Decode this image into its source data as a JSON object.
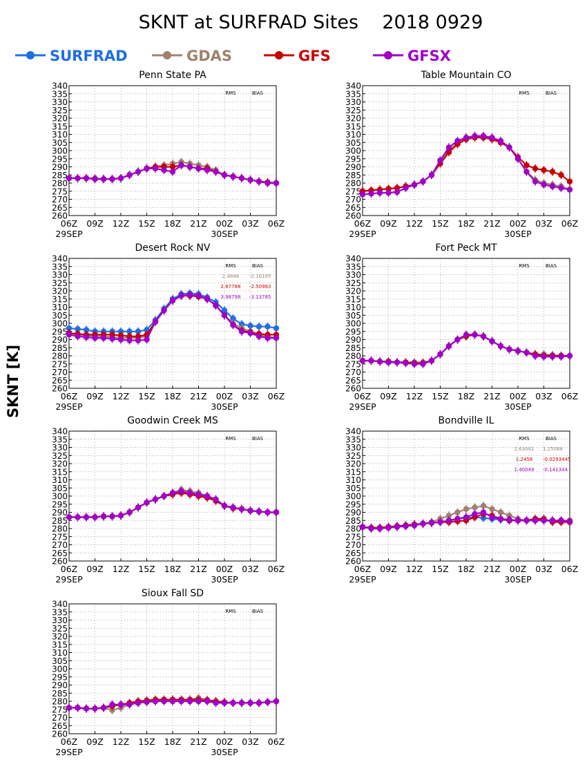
{
  "title": "SKNT at SURFRAD Sites    2018 0929",
  "ylabel": "SKNT [K]",
  "legend": [
    {
      "name": "SURFRAD",
      "color": "#1e6ee6"
    },
    {
      "name": "GDAS",
      "color": "#a08070"
    },
    {
      "name": "GFS",
      "color": "#c80000"
    },
    {
      "name": "GFSX",
      "color": "#a000c8"
    }
  ],
  "x_tick_labels": [
    "06Z",
    "09Z",
    "12Z",
    "15Z",
    "18Z",
    "21Z",
    "00Z",
    "03Z",
    "06Z"
  ],
  "date_labels": [
    "29SEP",
    "30SEP"
  ],
  "y_ticks": [
    260,
    265,
    270,
    275,
    280,
    285,
    290,
    295,
    300,
    305,
    310,
    315,
    320,
    325,
    330,
    335,
    340
  ],
  "stats_headers": [
    "RMS",
    "BIAS"
  ],
  "chart_data": [
    {
      "type": "line",
      "title": "Penn State PA",
      "x_hours": [
        0,
        1,
        2,
        3,
        4,
        5,
        6,
        7,
        8,
        9,
        10,
        11,
        12,
        13,
        14,
        15,
        16,
        17,
        18,
        19,
        20,
        21,
        22,
        23,
        24
      ],
      "ylim": [
        260,
        340
      ],
      "grid": true,
      "stats": [],
      "series": [
        {
          "name": "GDAS",
          "values": [
            283,
            283,
            283,
            283,
            282.5,
            282.5,
            283,
            285,
            287,
            289,
            290,
            291,
            292,
            293,
            292,
            291,
            290,
            288,
            285,
            284,
            283,
            282,
            281,
            280.5,
            280
          ]
        },
        {
          "name": "GFS",
          "values": [
            283,
            283,
            283,
            282.5,
            282.5,
            282.5,
            283,
            285,
            287,
            289,
            290,
            290,
            290,
            291,
            290,
            289,
            289,
            287,
            285,
            284,
            283,
            282,
            281,
            280.5,
            280
          ]
        },
        {
          "name": "GFSX",
          "values": [
            283,
            283,
            283,
            282.5,
            282.5,
            282.5,
            283,
            285,
            287,
            289,
            289,
            288,
            287,
            291,
            290,
            289,
            288,
            287,
            285,
            284,
            283,
            282,
            281,
            280,
            280
          ]
        }
      ]
    },
    {
      "type": "line",
      "title": "Table Mountain CO",
      "x_hours": [
        0,
        1,
        2,
        3,
        4,
        5,
        6,
        7,
        8,
        9,
        10,
        11,
        12,
        13,
        14,
        15,
        16,
        17,
        18,
        19,
        20,
        21,
        22,
        23,
        24
      ],
      "ylim": [
        260,
        340
      ],
      "grid": true,
      "stats": [],
      "series": [
        {
          "name": "GDAS",
          "values": [
            275,
            275.5,
            276,
            276.5,
            277,
            278,
            279,
            281,
            285,
            293,
            300,
            305,
            308,
            309,
            309,
            308,
            306,
            302,
            295,
            287,
            282,
            280,
            279,
            278,
            276
          ]
        },
        {
          "name": "GFS",
          "values": [
            275,
            275.5,
            276,
            276.5,
            277,
            278,
            279,
            281,
            285,
            292,
            299,
            304,
            307,
            308,
            308,
            307,
            305,
            302,
            296,
            291,
            289,
            288,
            287,
            285,
            281
          ]
        },
        {
          "name": "GFSX",
          "values": [
            273,
            273.5,
            274,
            274,
            274.5,
            277,
            279,
            281,
            285,
            294,
            302,
            306,
            308,
            309,
            309,
            308,
            306,
            302,
            295,
            287,
            281,
            279,
            278,
            277,
            276
          ]
        }
      ]
    },
    {
      "type": "line",
      "title": "Desert Rock NV",
      "x_hours": [
        0,
        1,
        2,
        3,
        4,
        5,
        6,
        7,
        8,
        9,
        10,
        11,
        12,
        13,
        14,
        15,
        16,
        17,
        18,
        19,
        20,
        21,
        22,
        23,
        24
      ],
      "ylim": [
        260,
        340
      ],
      "grid": true,
      "stats": [
        {
          "series": "GDAS",
          "rms": "2.4848",
          "bias": "-2.16185"
        },
        {
          "series": "GFS",
          "rms": "2.87788",
          "bias": "-2.50983"
        },
        {
          "series": "GFSX",
          "rms": "3.98798",
          "bias": "-3.13785"
        }
      ],
      "series": [
        {
          "name": "SURFRAD",
          "values": [
            297,
            296.5,
            296,
            295,
            295,
            295,
            295,
            295,
            295,
            296,
            302,
            309,
            315,
            318,
            318.5,
            318,
            316,
            313,
            308,
            303,
            299.5,
            298.5,
            298,
            298,
            297
          ]
        },
        {
          "name": "GDAS",
          "values": [
            294,
            293,
            292.5,
            292,
            292,
            291.5,
            291,
            291,
            291,
            292,
            301,
            308,
            314,
            317,
            317.5,
            317,
            315,
            311,
            305,
            300,
            297,
            295,
            293,
            292,
            291
          ]
        },
        {
          "name": "GFS",
          "values": [
            294,
            293.5,
            293,
            293,
            293,
            293,
            292.5,
            292,
            292,
            293,
            301,
            308,
            314,
            317,
            317,
            316.5,
            315,
            311,
            305,
            299,
            295.5,
            294.5,
            293.5,
            293,
            293
          ]
        },
        {
          "name": "GFSX",
          "values": [
            293,
            292,
            291.5,
            291,
            291,
            290.5,
            290,
            289.5,
            289.5,
            290,
            301,
            308,
            314,
            317,
            317.5,
            317,
            315,
            311,
            305,
            299,
            295,
            294,
            292,
            291,
            291
          ]
        }
      ]
    },
    {
      "type": "line",
      "title": "Fort Peck MT",
      "x_hours": [
        0,
        1,
        2,
        3,
        4,
        5,
        6,
        7,
        8,
        9,
        10,
        11,
        12,
        13,
        14,
        15,
        16,
        17,
        18,
        19,
        20,
        21,
        22,
        23,
        24
      ],
      "ylim": [
        260,
        340
      ],
      "grid": true,
      "stats": [],
      "series": [
        {
          "name": "GDAS",
          "values": [
            277,
            277,
            276.5,
            276.5,
            276,
            276,
            276,
            276,
            277,
            281,
            286,
            290,
            292,
            293,
            292,
            289,
            286,
            284,
            283,
            282,
            281,
            281,
            280.5,
            280,
            280
          ]
        },
        {
          "name": "GFS",
          "values": [
            277,
            277,
            276.5,
            276.5,
            276,
            276,
            275.5,
            275.5,
            277,
            281,
            286,
            290,
            292,
            293,
            292,
            289,
            286,
            284,
            283,
            282,
            281,
            280,
            280,
            280,
            280
          ]
        },
        {
          "name": "GFSX",
          "values": [
            277,
            277,
            276.5,
            276,
            276,
            275.5,
            275,
            275,
            277,
            281,
            286,
            290,
            293,
            293,
            292,
            289,
            286,
            284,
            283,
            282,
            280,
            279.5,
            279.5,
            279.5,
            280
          ]
        }
      ]
    },
    {
      "type": "line",
      "title": "Goodwin Creek MS",
      "x_hours": [
        0,
        1,
        2,
        3,
        4,
        5,
        6,
        7,
        8,
        9,
        10,
        11,
        12,
        13,
        14,
        15,
        16,
        17,
        18,
        19,
        20,
        21,
        22,
        23,
        24
      ],
      "ylim": [
        260,
        340
      ],
      "grid": true,
      "stats": [],
      "series": [
        {
          "name": "GDAS",
          "values": [
            287,
            287,
            287,
            287,
            287.5,
            287.5,
            288,
            290,
            293,
            296,
            298,
            300,
            302,
            304,
            303,
            302,
            300,
            298,
            294,
            293,
            292,
            291,
            290.5,
            290,
            290
          ]
        },
        {
          "name": "GFS",
          "values": [
            287,
            287,
            287,
            287,
            287.5,
            287.5,
            288,
            290,
            293,
            296,
            298,
            300,
            301,
            302,
            301,
            300,
            299,
            297,
            294,
            292.5,
            292,
            291,
            290.5,
            290,
            290
          ]
        },
        {
          "name": "GFSX",
          "values": [
            287,
            287,
            287,
            287,
            287.5,
            287.5,
            288,
            290,
            293,
            296,
            298,
            300,
            302,
            303,
            302,
            301,
            300,
            298,
            294,
            293,
            292,
            291,
            290.5,
            290,
            290
          ]
        }
      ]
    },
    {
      "type": "line",
      "title": "Bondville IL",
      "x_hours": [
        0,
        1,
        2,
        3,
        4,
        5,
        6,
        7,
        8,
        9,
        10,
        11,
        12,
        13,
        14,
        15,
        16,
        17,
        18,
        19,
        20,
        21,
        22,
        23,
        24
      ],
      "ylim": [
        260,
        340
      ],
      "grid": true,
      "stats": [
        {
          "series": "GDAS",
          "rms": "2.63041",
          "bias": "1.25088"
        },
        {
          "series": "GFS",
          "rms": "1.2458",
          "bias": "-0.0293445"
        },
        {
          "series": "GFSX",
          "rms": "1.40049",
          "bias": "-0.141344"
        }
      ],
      "series": [
        {
          "name": "SURFRAD",
          "values": [
            281,
            280.5,
            280.5,
            281,
            281.5,
            282,
            282.5,
            283,
            283.5,
            284,
            285,
            286,
            286.5,
            287,
            286.5,
            286,
            285.5,
            285,
            285,
            285,
            285,
            285,
            284.5,
            284.5,
            284
          ]
        },
        {
          "name": "GDAS",
          "values": [
            281,
            280,
            280,
            280.5,
            281,
            281.5,
            282,
            283,
            284,
            286,
            288,
            290,
            292,
            293,
            294,
            292,
            290,
            288,
            286,
            285,
            285,
            285,
            285,
            285,
            285
          ]
        },
        {
          "name": "GFS",
          "values": [
            281,
            280.5,
            280.5,
            281,
            281.5,
            282,
            282.5,
            283,
            283.5,
            284,
            284,
            284.5,
            285,
            287,
            289,
            288,
            286,
            285,
            285,
            285,
            286,
            286,
            284,
            284,
            284
          ]
        },
        {
          "name": "GFSX",
          "values": [
            281,
            280,
            280,
            280.5,
            281,
            281.5,
            282,
            283,
            283.5,
            284,
            285,
            286,
            287,
            289,
            290,
            287,
            286,
            285.5,
            285,
            285,
            285,
            285,
            285,
            285,
            284.5
          ]
        }
      ]
    },
    {
      "type": "line",
      "title": "Sioux Fall SD",
      "x_hours": [
        0,
        1,
        2,
        3,
        4,
        5,
        6,
        7,
        8,
        9,
        10,
        11,
        12,
        13,
        14,
        15,
        16,
        17,
        18,
        19,
        20,
        21,
        22,
        23,
        24
      ],
      "ylim": [
        260,
        340
      ],
      "grid": true,
      "stats": [],
      "series": [
        {
          "name": "GDAS",
          "values": [
            276,
            276,
            275.5,
            275.5,
            276,
            274.5,
            276,
            278,
            279,
            280,
            280,
            281,
            281,
            281,
            281,
            282,
            281,
            280,
            279.5,
            279,
            279,
            279,
            279,
            279.5,
            280
          ]
        },
        {
          "name": "GFS",
          "values": [
            276,
            276,
            275.5,
            275.5,
            276,
            277,
            278,
            279,
            280,
            280.5,
            281,
            281,
            281,
            281,
            281,
            281,
            280.5,
            280,
            279.5,
            279,
            279,
            279,
            279,
            279.5,
            280
          ]
        },
        {
          "name": "GFSX",
          "values": [
            276,
            276,
            275.5,
            275.5,
            276,
            278,
            278,
            278,
            279,
            279.5,
            280,
            280,
            280,
            280,
            280,
            280,
            280,
            279,
            279,
            279,
            279,
            279,
            279,
            279.5,
            280
          ]
        }
      ]
    }
  ]
}
